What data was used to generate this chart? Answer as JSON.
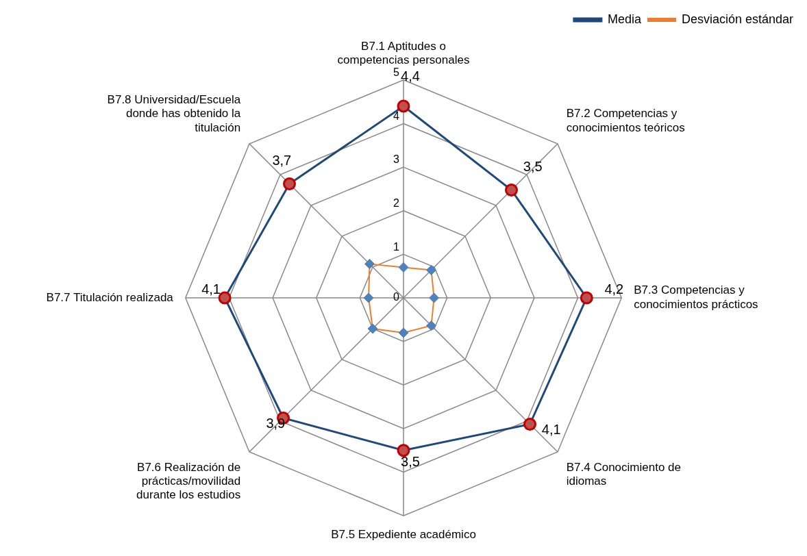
{
  "chart_data": {
    "type": "radar",
    "categories": [
      "B7.1 Aptitudes o competencias personales",
      "B7.2 Competencias y conocimientos teóricos",
      "B7.3 Competencias y conocimientos prácticos",
      "B7.4 Conocimiento de idiomas",
      "B7.5 Expediente académico",
      "B7.6 Realización de prácticas/movilidad durante los estudios",
      "B7.7 Titulación realizada",
      "B7.8 Universidad/Escuela donde has obtenido la titulación"
    ],
    "series": [
      {
        "name": "Media",
        "color": "#1f497d",
        "marker": "circle",
        "values": [
          4.4,
          3.5,
          4.2,
          4.1,
          3.5,
          3.9,
          4.1,
          3.7
        ],
        "value_labels": [
          "4,4",
          "3,5",
          "4,2",
          "4,1",
          "3,5",
          "3,9",
          "4,1",
          "3,7"
        ]
      },
      {
        "name": "Desviación estándar",
        "color": "#ed7d31",
        "marker": "diamond",
        "values": [
          0.7,
          0.9,
          0.7,
          0.9,
          0.8,
          1.0,
          0.8,
          1.1
        ]
      }
    ],
    "ylim": [
      0,
      5
    ],
    "yticks": [
      0,
      1,
      2,
      3,
      4,
      5
    ],
    "grid": true,
    "legend": "top right"
  }
}
